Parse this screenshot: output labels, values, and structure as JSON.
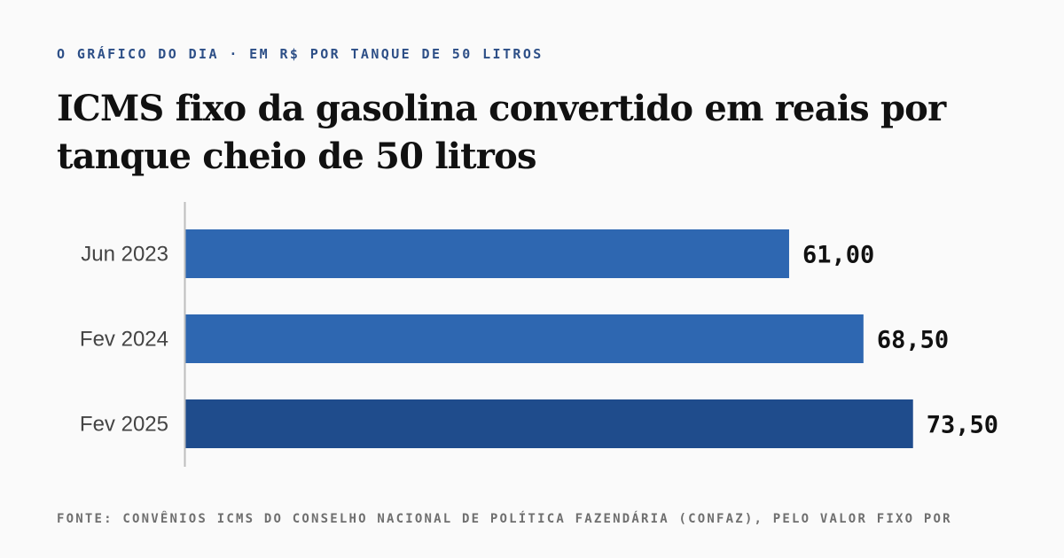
{
  "kicker": "O GRÁFICO DO DIA · EM R$ POR TANQUE DE 50 LITROS",
  "title": "ICMS fixo da gasolina convertido em reais por tanque cheio de 50 litros",
  "source": "FONTE: CONVÊNIOS ICMS DO CONSELHO NACIONAL DE POLÍTICA FAZENDÁRIA (CONFAZ), PELO VALOR FIXO POR",
  "colors": {
    "bar": "#2e67b1",
    "bar_highlight": "#1f4c8c",
    "axis": "#bdbdbd",
    "category_label": "#444444",
    "value_label": "#111111"
  },
  "chart_data": {
    "type": "bar",
    "orientation": "horizontal",
    "categories": [
      "Jun 2023",
      "Fev 2024",
      "Fev 2025"
    ],
    "values": [
      61.0,
      68.5,
      73.5
    ],
    "value_labels": [
      "61,00",
      "68,50",
      "73,50"
    ],
    "highlight": [
      false,
      false,
      true
    ],
    "xlim": [
      0,
      80
    ],
    "grid": false,
    "legend": "none"
  }
}
